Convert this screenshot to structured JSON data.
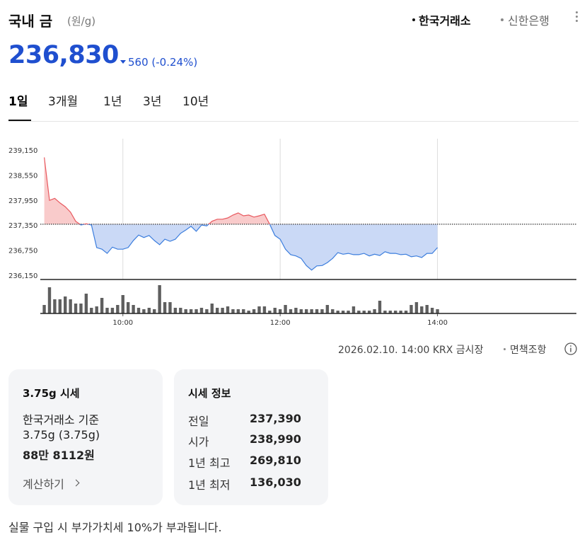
{
  "header": {
    "title": "국내 금",
    "unit": "(원/g)",
    "sources": [
      "한국거래소",
      "신한은행"
    ],
    "price": "236,830",
    "change": "560",
    "change_rate": "(-0.24%)"
  },
  "tabs": [
    "1일",
    "3개월",
    "1년",
    "3년",
    "10년"
  ],
  "chart_data": {
    "type": "line",
    "x": [
      "09:00",
      "09:04",
      "09:08",
      "09:12",
      "09:16",
      "09:20",
      "09:24",
      "09:28",
      "09:32",
      "09:36",
      "09:40",
      "09:44",
      "09:48",
      "09:52",
      "09:56",
      "10:00",
      "10:04",
      "10:08",
      "10:12",
      "10:16",
      "10:20",
      "10:24",
      "10:28",
      "10:32",
      "10:36",
      "10:40",
      "10:44",
      "10:48",
      "10:52",
      "10:56",
      "11:00",
      "11:04",
      "11:08",
      "11:12",
      "11:16",
      "11:20",
      "11:24",
      "11:28",
      "11:32",
      "11:36",
      "11:40",
      "11:44",
      "11:48",
      "11:52",
      "11:56",
      "12:00",
      "12:04",
      "12:08",
      "12:12",
      "12:16",
      "12:20",
      "12:24",
      "12:28",
      "12:32",
      "12:36",
      "12:40",
      "12:44",
      "12:48",
      "12:52",
      "12:56",
      "13:00",
      "13:04",
      "13:08",
      "13:12",
      "13:16",
      "13:20",
      "13:24",
      "13:28",
      "13:32",
      "13:36",
      "13:40",
      "13:44",
      "13:48",
      "13:52",
      "13:56",
      "14:00"
    ],
    "values": [
      238990,
      237960,
      238010,
      237900,
      237810,
      237680,
      237460,
      237370,
      237400,
      237370,
      236830,
      236790,
      236690,
      236840,
      236790,
      236790,
      236830,
      237000,
      237130,
      237070,
      237120,
      237000,
      236900,
      237030,
      236980,
      237030,
      237170,
      237250,
      237340,
      237220,
      237370,
      237350,
      237460,
      237510,
      237510,
      237540,
      237610,
      237660,
      237590,
      237610,
      237560,
      237590,
      237630,
      237390,
      237120,
      237030,
      236790,
      236660,
      236630,
      236570,
      236400,
      236290,
      236390,
      236400,
      236470,
      236570,
      236710,
      236670,
      236690,
      236660,
      236660,
      236690,
      236630,
      236670,
      236640,
      236730,
      236690,
      236690,
      236660,
      236670,
      236610,
      236630,
      236590,
      236690,
      236690,
      236830
    ],
    "volume": [
      12,
      37,
      20,
      20,
      24,
      20,
      14,
      14,
      28,
      8,
      10,
      22,
      8,
      8,
      12,
      26,
      16,
      12,
      8,
      6,
      8,
      6,
      40,
      16,
      16,
      8,
      8,
      6,
      6,
      6,
      8,
      6,
      14,
      8,
      8,
      10,
      6,
      6,
      6,
      4,
      6,
      10,
      10,
      4,
      8,
      6,
      12,
      6,
      8,
      6,
      6,
      6,
      6,
      6,
      12,
      6,
      4,
      4,
      4,
      10,
      4,
      4,
      4,
      6,
      18,
      4,
      4,
      4,
      4,
      4,
      12,
      16,
      10,
      12,
      8,
      6
    ],
    "xlim": [
      "08:57",
      "15:46"
    ],
    "xticks": [
      "10:00",
      "12:00",
      "14:00"
    ],
    "xgrid": true,
    "ylim": [
      236150,
      239150
    ],
    "yticks": [
      {
        "value": 239150,
        "label": "239,150"
      },
      {
        "value": 238550,
        "label": "238,550"
      },
      {
        "value": 237950,
        "label": "237,950"
      },
      {
        "value": 237350,
        "label": "237,350"
      },
      {
        "value": 236750,
        "label": "236,750"
      },
      {
        "value": 236150,
        "label": "236,150"
      }
    ],
    "y2lim": [
      0,
      45
    ],
    "reference_line": 237390,
    "color_above": "#e8585e",
    "color_below": "#3b7ddd",
    "fill_above": "#f9cbcb",
    "fill_below": "#cad9f6",
    "volume_color": "#5f5f5f"
  },
  "chart_note": {
    "source": "2026.02.10. 14:00 KRX 금시장",
    "disclaimer": "면책조항"
  },
  "cards": [
    {
      "title": "3.75g 시세",
      "lines": [
        "한국거래소 기준",
        "3.75g (3.75g)",
        "88만 8112원"
      ],
      "link": "계산하기"
    },
    {
      "title": "시세 정보",
      "rows": [
        [
          "전일",
          "237,390"
        ],
        [
          "시가",
          "238,990"
        ],
        [
          "1년 최고",
          "269,810"
        ],
        [
          "1년 최저",
          "136,030"
        ]
      ]
    }
  ],
  "footer": "실물 구입 시 부가가치세 10%가 부과됩니다."
}
